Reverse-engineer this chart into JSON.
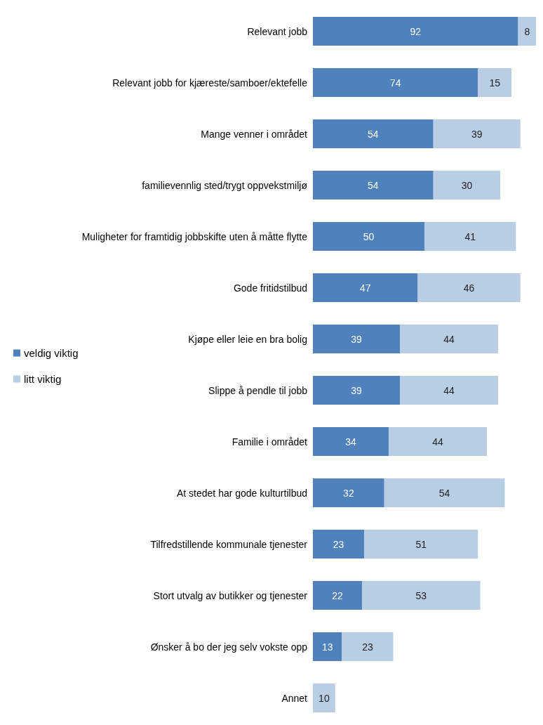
{
  "chart_data": {
    "type": "bar",
    "orientation": "horizontal",
    "stacked": true,
    "data_labels": true,
    "legend": "left",
    "categories": [
      "Relevant jobb",
      "Relevant jobb for kjæreste/samboer/ektefelle",
      "Mange venner i området",
      "familievennlig sted/trygt oppvekstmiljø",
      "Muligheter for framtidig jobbskifte uten å måtte flytte",
      "Gode fritidstilbud",
      "Kjøpe eller leie en bra bolig",
      "Slippe å pendle til jobb",
      "Familie i området",
      "At stedet har gode kulturtilbud",
      "Tilfredstillende kommunale tjenester",
      "Stort utvalg av butikker og tjenester",
      "Ønsker å bo der jeg selv vokste opp",
      "Annet"
    ],
    "series": [
      {
        "name": "veldig viktig",
        "color": "#4f81bd",
        "values": [
          92,
          74,
          54,
          54,
          50,
          47,
          39,
          39,
          34,
          32,
          23,
          22,
          13,
          null
        ]
      },
      {
        "name": "litt viktig",
        "color": "#b9cde5",
        "values": [
          8,
          15,
          39,
          30,
          41,
          46,
          44,
          44,
          44,
          54,
          51,
          53,
          23,
          10
        ]
      }
    ]
  }
}
